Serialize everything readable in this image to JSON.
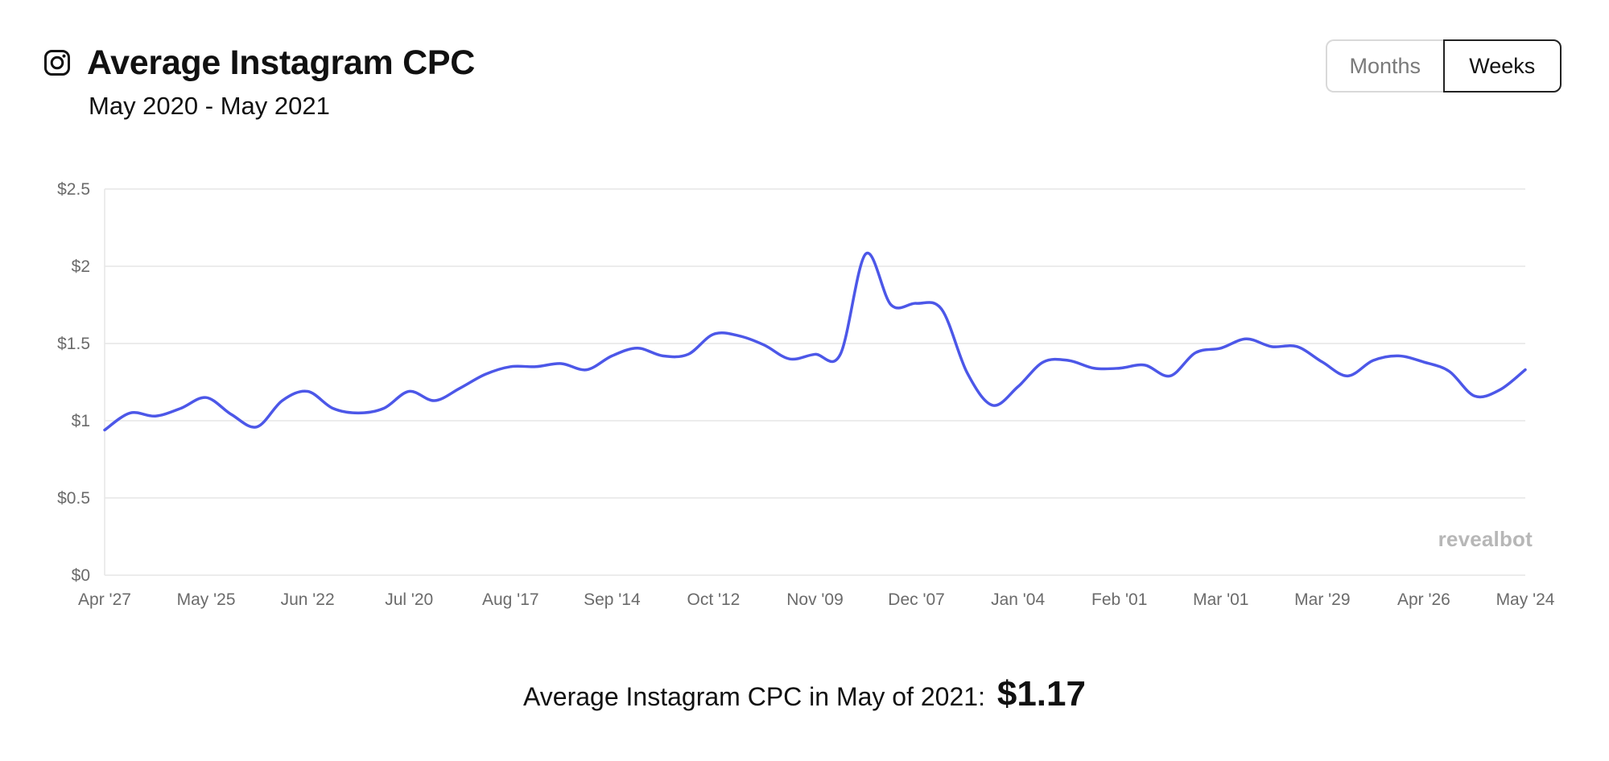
{
  "header": {
    "title": "Average Instagram CPC",
    "subtitle": "May 2020 - May 2021",
    "icon": "instagram-icon"
  },
  "toggle": {
    "months_label": "Months",
    "weeks_label": "Weeks",
    "selected": "Weeks"
  },
  "watermark": "revealbot",
  "footer": {
    "text": "Average Instagram CPC in May of 2021:",
    "value": "$1.17"
  },
  "colors": {
    "line": "#4c57e8",
    "grid": "#e6e6e6",
    "axis_text": "#6b6b6b"
  },
  "chart_data": {
    "type": "line",
    "title": "Average Instagram CPC",
    "subtitle": "May 2020 - May 2021",
    "xlabel": "",
    "ylabel": "",
    "ylim": [
      0,
      2.5
    ],
    "yticks": [
      0,
      0.5,
      1,
      1.5,
      2,
      2.5
    ],
    "ytick_labels": [
      "$0",
      "$0.5",
      "$1",
      "$1.5",
      "$2",
      "$2.5"
    ],
    "xtick_labels": [
      "Apr '27",
      "May '25",
      "Jun '22",
      "Jul '20",
      "Aug '17",
      "Sep '14",
      "Oct '12",
      "Nov '09",
      "Dec '07",
      "Jan '04",
      "Feb '01",
      "Mar '01",
      "Mar '29",
      "Apr '26",
      "May '24"
    ],
    "grid": true,
    "series": [
      {
        "color": "#4c57e8",
        "values": [
          0.94,
          1.05,
          1.03,
          1.08,
          1.15,
          1.04,
          0.96,
          1.13,
          1.19,
          1.08,
          1.05,
          1.08,
          1.19,
          1.13,
          1.21,
          1.3,
          1.35,
          1.35,
          1.37,
          1.33,
          1.42,
          1.47,
          1.42,
          1.43,
          1.56,
          1.55,
          1.49,
          1.4,
          1.43,
          1.43,
          2.08,
          1.75,
          1.76,
          1.72,
          1.31,
          1.1,
          1.22,
          1.38,
          1.39,
          1.34,
          1.34,
          1.36,
          1.29,
          1.44,
          1.47,
          1.53,
          1.48,
          1.48,
          1.38,
          1.29,
          1.39,
          1.42,
          1.38,
          1.32,
          1.16,
          1.2,
          1.33
        ]
      }
    ]
  }
}
